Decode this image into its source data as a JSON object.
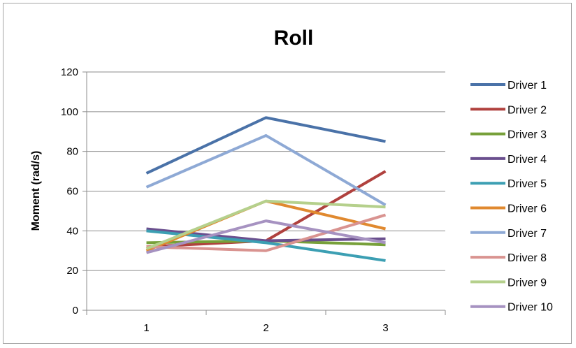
{
  "chart_data": {
    "type": "line",
    "title": "Roll",
    "xlabel": "",
    "ylabel": "Moment (rad/s)",
    "categories": [
      "1",
      "2",
      "3"
    ],
    "ylim": [
      0,
      120
    ],
    "yticks": [
      "0",
      "20",
      "40",
      "60",
      "80",
      "100",
      "120"
    ],
    "grid": true,
    "legend_position": "right",
    "series": [
      {
        "name": "Driver 1",
        "color": "#4a72a8",
        "values": [
          69,
          97,
          85
        ]
      },
      {
        "name": "Driver 2",
        "color": "#b0413e",
        "values": [
          32,
          35,
          70
        ]
      },
      {
        "name": "Driver 3",
        "color": "#77a03a",
        "values": [
          34,
          35,
          33
        ]
      },
      {
        "name": "Driver 4",
        "color": "#6a4f8e",
        "values": [
          41,
          35,
          36
        ]
      },
      {
        "name": "Driver 5",
        "color": "#3c9fb3",
        "values": [
          40,
          34,
          25
        ]
      },
      {
        "name": "Driver 6",
        "color": "#e0892f",
        "values": [
          30,
          55,
          41
        ]
      },
      {
        "name": "Driver 7",
        "color": "#8ea9d5",
        "values": [
          62,
          88,
          53
        ]
      },
      {
        "name": "Driver 8",
        "color": "#d99390",
        "values": [
          32,
          30,
          48
        ]
      },
      {
        "name": "Driver 9",
        "color": "#b5d08c",
        "values": [
          31,
          55,
          52
        ]
      },
      {
        "name": "Driver 10",
        "color": "#a692c1",
        "values": [
          29,
          45,
          34
        ]
      }
    ]
  }
}
